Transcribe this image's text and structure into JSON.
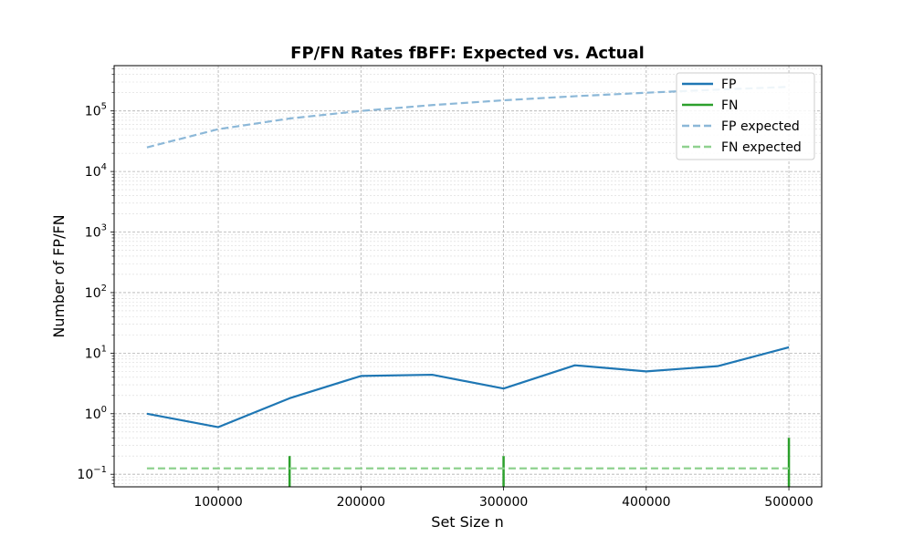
{
  "chart_data": {
    "type": "line",
    "title": "FP/FN Rates fBFF: Expected vs. Actual",
    "xlabel": "Set Size n",
    "ylabel": "Number of FP/FN",
    "yscale": "log",
    "xlim": [
      27000,
      523000
    ],
    "ylim": [
      0.062,
      560000
    ],
    "x_ticks": [
      100000,
      200000,
      300000,
      400000,
      500000
    ],
    "y_tick_exponents": [
      -1,
      0,
      1,
      2,
      3,
      4,
      5
    ],
    "grid": true,
    "legend_position": "top-right",
    "x": [
      50000,
      100000,
      150000,
      200000,
      250000,
      300000,
      350000,
      400000,
      450000,
      500000
    ],
    "series": [
      {
        "name": "FP",
        "style": "solid",
        "color": "#1f77b4",
        "values": [
          1.0,
          0.6,
          1.8,
          4.2,
          4.4,
          2.6,
          6.3,
          5.0,
          6.1,
          12.5
        ]
      },
      {
        "name": "FN",
        "style": "solid",
        "color": "#2ca02c",
        "values": [
          0,
          0,
          0.2,
          0,
          0,
          0.2,
          0,
          0,
          0,
          0.4
        ]
      },
      {
        "name": "FP expected",
        "style": "dashed",
        "color": "#8cb8d8",
        "values": [
          25000,
          50000,
          75000,
          100000,
          125000,
          150000,
          175000,
          200000,
          225000,
          250000
        ]
      },
      {
        "name": "FN expected",
        "style": "dashed",
        "color": "#8fd18f",
        "values": [
          0.125,
          0.125,
          0.125,
          0.125,
          0.125,
          0.125,
          0.125,
          0.125,
          0.125,
          0.125
        ]
      }
    ]
  }
}
